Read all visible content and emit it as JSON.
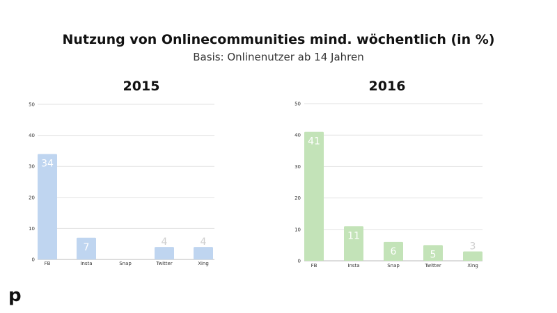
{
  "title": "Nutzung von Onlinecommunities mind. wöchentlich (in %)",
  "subtitle": "Basis: Onlinenutzer ab 14 Jahren",
  "logo_text": "p",
  "chart_data": [
    {
      "type": "bar",
      "title": "2015",
      "categories": [
        "FB",
        "Insta",
        "Snap",
        "Twitter",
        "Xing"
      ],
      "values": [
        34,
        7,
        0,
        4,
        4
      ],
      "data_labels": [
        "34",
        "7",
        "",
        "4",
        "4"
      ],
      "ylim": [
        0,
        50
      ],
      "yticks": [
        0,
        10,
        20,
        30,
        40,
        50
      ],
      "grid": true,
      "color": "#bfd5f0"
    },
    {
      "type": "bar",
      "title": "2016",
      "categories": [
        "FB",
        "Insta",
        "Snap",
        "Twitter",
        "Xing"
      ],
      "values": [
        41,
        11,
        6,
        5,
        3
      ],
      "data_labels": [
        "41",
        "11",
        "6",
        "5",
        "3"
      ],
      "ylim": [
        0,
        50
      ],
      "yticks": [
        0,
        10,
        20,
        30,
        40,
        50
      ],
      "grid": true,
      "color": "#c3e3b8"
    }
  ]
}
